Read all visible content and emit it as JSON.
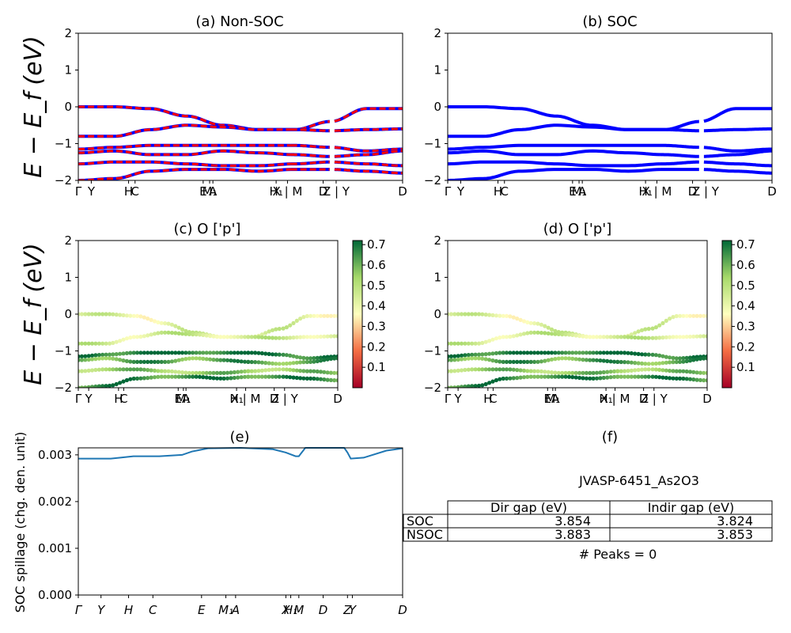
{
  "panels": {
    "a": {
      "title": "(a) Non-SOC",
      "ylabel": "E − E_f (eV)"
    },
    "b": {
      "title": "(b) SOC"
    },
    "c": {
      "title": "(c)  O ['p']",
      "ylabel": "E − E_f (eV)"
    },
    "d": {
      "title": "(d) O ['p']"
    },
    "e": {
      "title": "(e)",
      "ylabel": "SOC spillage (chg. den. unit)"
    },
    "f": {
      "title": "(f)"
    }
  },
  "band_axes": {
    "ylim": [
      -2,
      2
    ],
    "yticks": [
      "2",
      "1",
      "0",
      "−1",
      "−2"
    ],
    "xlim": [
      0,
      1
    ],
    "kpath_ticks": [
      {
        "pos": 0.0,
        "label": "Γ"
      },
      {
        "pos": 0.04,
        "label": "Y"
      },
      {
        "pos": 0.155,
        "label": "H"
      },
      {
        "pos": 0.175,
        "label": "C"
      },
      {
        "pos": 0.385,
        "label": "E"
      },
      {
        "pos": 0.405,
        "label": "M₁"
      },
      {
        "pos": 0.415,
        "label": "A"
      },
      {
        "pos": 0.61,
        "label": "H₁"
      },
      {
        "pos": 0.645,
        "label": "X | M"
      },
      {
        "pos": 0.755,
        "label": "D"
      },
      {
        "pos": 0.795,
        "label": "Z | Y"
      },
      {
        "pos": 1.0,
        "label": "D"
      }
    ]
  },
  "colorbars": {
    "colormap": "RdYlGn",
    "range": [
      0.0,
      0.72
    ],
    "ticks": [
      "0.7",
      "0.6",
      "0.5",
      "0.4",
      "0.3",
      "0.2",
      "0.1"
    ]
  },
  "chart_data": [
    {
      "type": "line",
      "panel": "a",
      "title": "(a) Non-SOC",
      "ylabel": "E − E_f (eV)",
      "ylim": [
        -2,
        2
      ],
      "series_style": {
        "colors": [
          "#0000ff",
          "#ff0000"
        ],
        "dashed_overlay": true
      },
      "bands_y": [
        [
          0.0,
          0.0,
          -0.05,
          -0.25,
          -0.5,
          -0.62,
          -0.62,
          -0.4,
          -0.05,
          -0.05
        ],
        [
          -0.8,
          -0.8,
          -0.62,
          -0.5,
          -0.55,
          -0.62,
          -0.62,
          -0.65,
          -0.62,
          -0.6
        ],
        [
          -1.15,
          -1.1,
          -1.05,
          -1.05,
          -1.05,
          -1.05,
          -1.05,
          -1.1,
          -1.2,
          -1.15
        ],
        [
          -1.25,
          -1.2,
          -1.3,
          -1.3,
          -1.2,
          -1.25,
          -1.3,
          -1.35,
          -1.3,
          -1.2
        ],
        [
          -1.55,
          -1.5,
          -1.5,
          -1.55,
          -1.6,
          -1.6,
          -1.55,
          -1.5,
          -1.55,
          -1.6
        ],
        [
          -2.0,
          -1.95,
          -1.75,
          -1.7,
          -1.7,
          -1.75,
          -1.7,
          -1.7,
          -1.75,
          -1.8
        ]
      ]
    },
    {
      "type": "line",
      "panel": "b",
      "title": "(b) SOC",
      "ylim": [
        -2,
        2
      ],
      "series_style": {
        "colors": [
          "#0000ff"
        ]
      },
      "bands_y": [
        [
          0.0,
          0.0,
          -0.05,
          -0.25,
          -0.5,
          -0.62,
          -0.62,
          -0.4,
          -0.05,
          -0.05
        ],
        [
          -0.8,
          -0.8,
          -0.62,
          -0.5,
          -0.55,
          -0.62,
          -0.62,
          -0.65,
          -0.62,
          -0.6
        ],
        [
          -1.15,
          -1.1,
          -1.05,
          -1.05,
          -1.05,
          -1.05,
          -1.05,
          -1.1,
          -1.2,
          -1.15
        ],
        [
          -1.25,
          -1.2,
          -1.3,
          -1.3,
          -1.2,
          -1.25,
          -1.3,
          -1.35,
          -1.3,
          -1.2
        ],
        [
          -1.55,
          -1.5,
          -1.5,
          -1.55,
          -1.6,
          -1.6,
          -1.55,
          -1.5,
          -1.55,
          -1.6
        ],
        [
          -2.0,
          -1.95,
          -1.75,
          -1.7,
          -1.7,
          -1.75,
          -1.7,
          -1.7,
          -1.75,
          -1.8
        ]
      ]
    },
    {
      "type": "scatter",
      "panel": "c",
      "title": "(c)  O ['p']",
      "ylabel": "E − E_f (eV)",
      "ylim": [
        -2,
        2
      ],
      "color_range": [
        0.0,
        0.72
      ],
      "band_weights": [
        0.42,
        0.45,
        0.7,
        0.62,
        0.55,
        0.66
      ]
    },
    {
      "type": "scatter",
      "panel": "d",
      "title": "(d) O ['p']",
      "ylim": [
        -2,
        2
      ],
      "color_range": [
        0.0,
        0.72
      ],
      "band_weights": [
        0.42,
        0.45,
        0.7,
        0.62,
        0.55,
        0.66
      ]
    },
    {
      "type": "line",
      "panel": "e",
      "title": "(e)",
      "ylabel": "SOC spillage (chg. den. unit)",
      "ylim": [
        0,
        0.00315
      ],
      "yticks": [
        "0.003",
        "0.002",
        "0.001",
        "0.000"
      ],
      "xtick_labels": [
        "Γ",
        "Y",
        "H",
        "C",
        "E",
        "M₁",
        "A",
        "X",
        "H₁",
        "M",
        "D",
        "Z",
        "Y",
        "D"
      ],
      "xtick_positions": [
        0.0,
        0.07,
        0.155,
        0.23,
        0.38,
        0.455,
        0.485,
        0.64,
        0.655,
        0.68,
        0.755,
        0.83,
        0.845,
        1.0
      ],
      "line_color": "#1f77b4",
      "x": [
        0.0,
        0.05,
        0.1,
        0.13,
        0.17,
        0.2,
        0.25,
        0.32,
        0.35,
        0.4,
        0.5,
        0.6,
        0.64,
        0.67,
        0.68,
        0.7,
        0.82,
        0.83,
        0.84,
        0.88,
        0.95,
        1.0
      ],
      "y": [
        0.00292,
        0.00292,
        0.00292,
        0.00294,
        0.00297,
        0.00297,
        0.00297,
        0.003,
        0.00307,
        0.00314,
        0.00315,
        0.00312,
        0.00305,
        0.00297,
        0.00297,
        0.00315,
        0.00315,
        0.00305,
        0.00292,
        0.00294,
        0.00309,
        0.00314
      ]
    },
    {
      "type": "table",
      "panel": "f",
      "title": "JVASP-6451_As2O3",
      "columns": [
        "Dir gap (eV)",
        "Indir gap (eV)"
      ],
      "rows": [
        {
          "label": "SOC",
          "values": [
            "3.854",
            "3.824"
          ]
        },
        {
          "label": "NSOC",
          "values": [
            "3.883",
            "3.853"
          ]
        }
      ],
      "footer": "# Peaks = 0"
    }
  ]
}
